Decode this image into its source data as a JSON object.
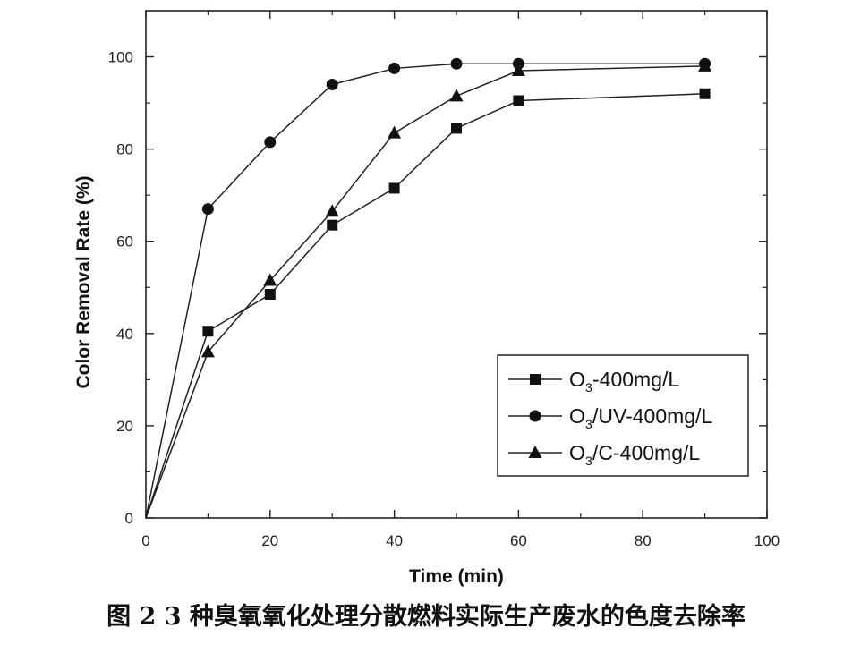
{
  "chart_data": {
    "type": "line",
    "xlabel": "Time (min)",
    "ylabel": "Color Removal Rate (%)",
    "xlim": [
      0,
      100
    ],
    "ylim": [
      0,
      110
    ],
    "xticks": [
      0,
      20,
      40,
      60,
      80,
      100
    ],
    "yticks": [
      0,
      20,
      40,
      60,
      80,
      100
    ],
    "grid": false,
    "legend_position": "bottom-right",
    "series": [
      {
        "name": "O3-400mg/L",
        "legend_main": "O",
        "legend_sub": "3",
        "legend_rest": "-400mg/L",
        "marker": "square",
        "x": [
          0,
          10,
          20,
          30,
          40,
          50,
          60,
          90
        ],
        "y": [
          0,
          40.5,
          48.5,
          63.5,
          71.5,
          84.5,
          90.5,
          92
        ]
      },
      {
        "name": "O3/UV-400mg/L",
        "legend_main": "O",
        "legend_sub": "3",
        "legend_rest": "/UV-400mg/L",
        "marker": "circle",
        "x": [
          0,
          10,
          20,
          30,
          40,
          50,
          60,
          90
        ],
        "y": [
          0,
          67,
          81.5,
          94,
          97.5,
          98.5,
          98.5,
          98.5
        ]
      },
      {
        "name": "O3/C-400mg/L",
        "legend_main": "O",
        "legend_sub": "3",
        "legend_rest": "/C-400mg/L",
        "marker": "triangle",
        "x": [
          0,
          10,
          20,
          30,
          40,
          50,
          60,
          90
        ],
        "y": [
          0,
          36,
          51.5,
          66.5,
          83.5,
          91.5,
          97,
          98
        ]
      }
    ]
  },
  "caption": "图 2 3 种臭氧氧化处理分散燃料实际生产废水的色度去除率"
}
